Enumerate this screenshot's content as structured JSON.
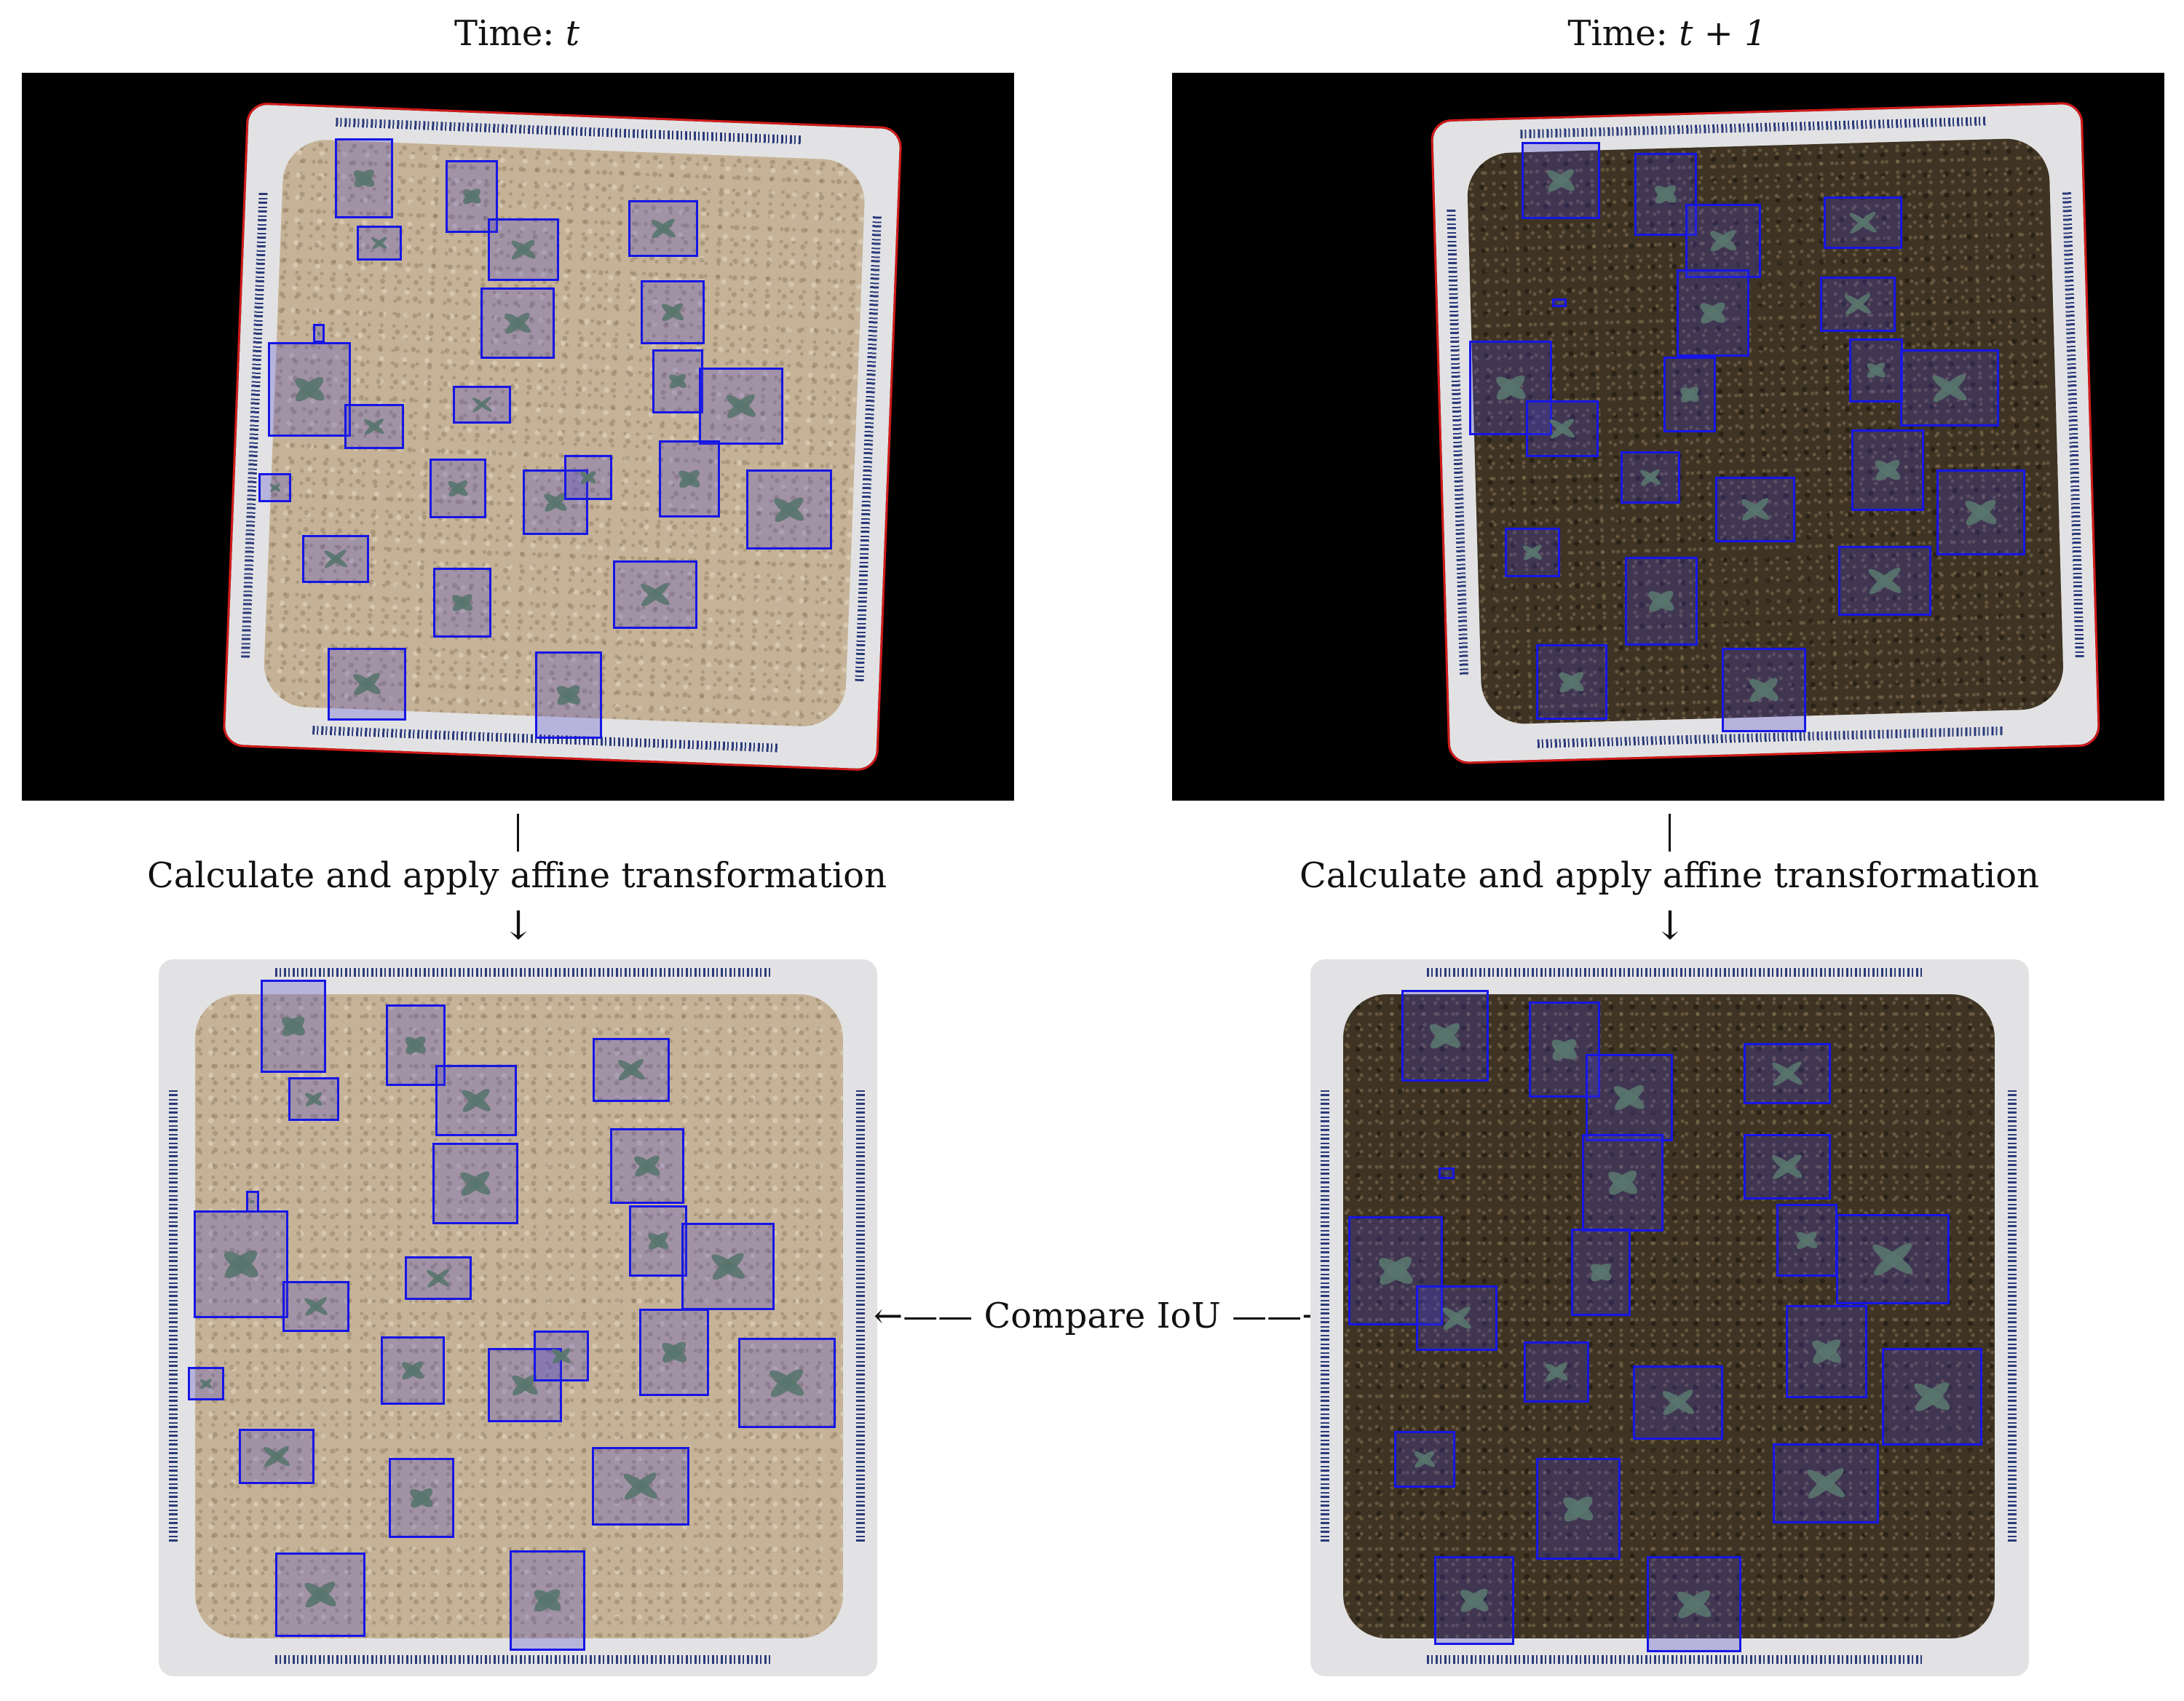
{
  "titles": {
    "left_prefix": "Time: ",
    "left_var": "t",
    "right_prefix": "Time: ",
    "right_var": "t + 1"
  },
  "steps": {
    "left_transform": "Calculate and apply affine transformation",
    "right_transform": "Calculate and apply affine transformation",
    "compare": "←—— Compare IoU ——→"
  },
  "colors": {
    "box_border": "#1616e6",
    "tray_outline": "#d21a1a",
    "background_panel": "#000000"
  }
}
